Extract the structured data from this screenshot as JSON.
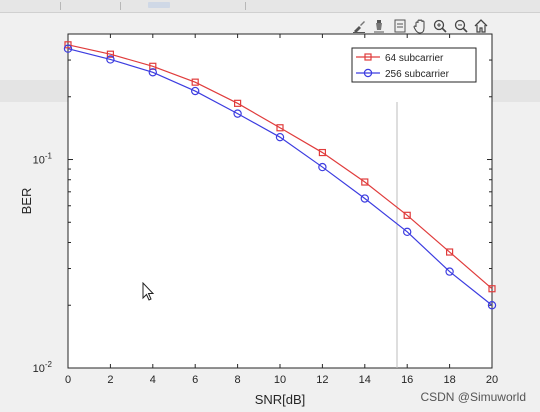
{
  "toolbar": {
    "icons": [
      "brush-icon",
      "data-cursor-icon",
      "insert-legend-icon",
      "pan-hand-icon",
      "zoom-in-icon",
      "zoom-out-icon",
      "home-icon"
    ]
  },
  "watermark": {
    "text": "CSDN @Simuworld"
  },
  "chart_data": {
    "type": "line",
    "title": "",
    "xlabel": "SNR[dB]",
    "ylabel": "BER",
    "x": [
      0,
      2,
      4,
      6,
      8,
      10,
      12,
      14,
      16,
      18,
      20
    ],
    "xlim": [
      0,
      20
    ],
    "ylim": [
      0.01,
      0.4
    ],
    "yscale": "log",
    "xticks": [
      "0",
      "2",
      "4",
      "6",
      "8",
      "10",
      "12",
      "14",
      "16",
      "18",
      "20"
    ],
    "yticks": [
      {
        "value": 0.1,
        "label": "10",
        "exp": "-1"
      },
      {
        "value": 0.01,
        "label": "10",
        "exp": "-2"
      }
    ],
    "series": [
      {
        "name": "64 subcarrier",
        "color": "#e03c3c",
        "marker": "square",
        "values": [
          0.355,
          0.32,
          0.28,
          0.235,
          0.186,
          0.142,
          0.108,
          0.078,
          0.054,
          0.036,
          0.024
        ]
      },
      {
        "name": "256 subcarrier",
        "color": "#3c3ce0",
        "marker": "circle",
        "values": [
          0.34,
          0.302,
          0.262,
          0.213,
          0.166,
          0.128,
          0.092,
          0.065,
          0.045,
          0.029,
          0.02
        ]
      }
    ],
    "legend_position": "top-right",
    "grid": false
  }
}
